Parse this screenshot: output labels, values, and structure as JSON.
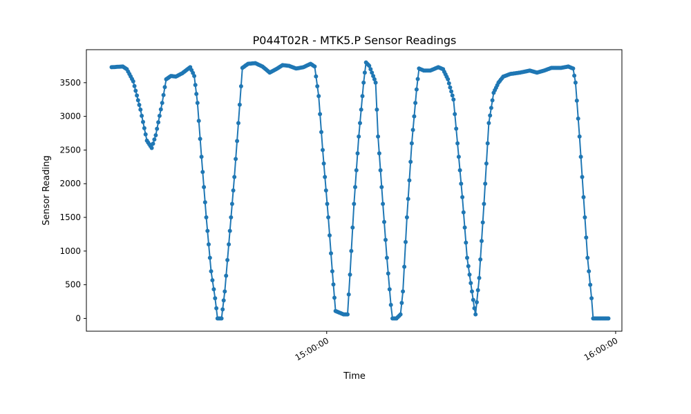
{
  "chart_data": {
    "type": "line",
    "title": "P044T02R - MTK5.P Sensor Readings",
    "xlabel": "Time",
    "ylabel": "Sensor Reading",
    "x_tick_labels": [
      "15:00:00",
      "16:00:00"
    ],
    "x_tick_minutes": [
      900,
      960
    ],
    "y_ticks": [
      0,
      500,
      1000,
      1500,
      2000,
      2500,
      3000,
      3500
    ],
    "ylim": [
      -190,
      3990
    ],
    "xlim_minutes": [
      850.1,
      961.3
    ],
    "grid": false,
    "marker": "circle",
    "series": [
      {
        "color": "#1f77b4",
        "points": [
          [
            "14:15:20",
            3730
          ],
          [
            "14:17:40",
            3740
          ],
          [
            "14:18:30",
            3700
          ],
          [
            "14:19:50",
            3520
          ],
          [
            "14:21:20",
            3100
          ],
          [
            "14:22:40",
            2640
          ],
          [
            "14:23:40",
            2530
          ],
          [
            "14:24:30",
            2720
          ],
          [
            "14:25:50",
            3200
          ],
          [
            "14:26:40",
            3550
          ],
          [
            "14:27:40",
            3600
          ],
          [
            "14:28:40",
            3590
          ],
          [
            "14:30:00",
            3640
          ],
          [
            "14:31:40",
            3730
          ],
          [
            "14:32:30",
            3600
          ],
          [
            "14:33:10",
            3200
          ],
          [
            "14:34:00",
            2400
          ],
          [
            "14:35:00",
            1500
          ],
          [
            "14:36:00",
            700
          ],
          [
            "14:36:50",
            300
          ],
          [
            "14:37:20",
            0
          ],
          [
            "14:38:10",
            0
          ],
          [
            "14:38:50",
            400
          ],
          [
            "14:39:40",
            1100
          ],
          [
            "14:40:50",
            2100
          ],
          [
            "14:41:40",
            2900
          ],
          [
            "14:42:30",
            3720
          ],
          [
            "14:43:40",
            3780
          ],
          [
            "14:45:10",
            3790
          ],
          [
            "14:46:40",
            3740
          ],
          [
            "14:48:10",
            3650
          ],
          [
            "14:49:30",
            3700
          ],
          [
            "14:50:50",
            3760
          ],
          [
            "14:52:10",
            3750
          ],
          [
            "14:53:40",
            3710
          ],
          [
            "14:55:10",
            3730
          ],
          [
            "14:56:40",
            3780
          ],
          [
            "14:57:30",
            3740
          ],
          [
            "14:58:20",
            3300
          ],
          [
            "14:59:10",
            2500
          ],
          [
            "15:00:20",
            1500
          ],
          [
            "15:01:10",
            700
          ],
          [
            "15:01:50",
            110
          ],
          [
            "15:02:30",
            90
          ],
          [
            "15:03:30",
            60
          ],
          [
            "15:04:20",
            60
          ],
          [
            "15:04:50",
            650
          ],
          [
            "15:05:40",
            1700
          ],
          [
            "15:06:40",
            2700
          ],
          [
            "15:07:40",
            3500
          ],
          [
            "15:08:10",
            3800
          ],
          [
            "15:08:50",
            3750
          ],
          [
            "15:09:40",
            3600
          ],
          [
            "15:10:10",
            3500
          ],
          [
            "15:10:40",
            2700
          ],
          [
            "15:11:40",
            1700
          ],
          [
            "15:12:30",
            900
          ],
          [
            "15:13:20",
            200
          ],
          [
            "15:13:40",
            0
          ],
          [
            "15:14:30",
            0
          ],
          [
            "15:15:20",
            60
          ],
          [
            "15:15:50",
            400
          ],
          [
            "15:16:40",
            1500
          ],
          [
            "15:17:40",
            2600
          ],
          [
            "15:18:40",
            3400
          ],
          [
            "15:19:10",
            3710
          ],
          [
            "15:20:10",
            3680
          ],
          [
            "15:21:30",
            3680
          ],
          [
            "15:23:10",
            3730
          ],
          [
            "15:24:10",
            3700
          ],
          [
            "15:25:10",
            3550
          ],
          [
            "15:26:20",
            3250
          ],
          [
            "15:27:10",
            2600
          ],
          [
            "15:28:10",
            1800
          ],
          [
            "15:29:10",
            900
          ],
          [
            "15:30:10",
            400
          ],
          [
            "15:30:40",
            150
          ],
          [
            "15:30:55",
            60
          ],
          [
            "15:31:40",
            600
          ],
          [
            "15:32:40",
            1700
          ],
          [
            "15:33:40",
            2900
          ],
          [
            "15:34:40",
            3350
          ],
          [
            "15:35:40",
            3500
          ],
          [
            "15:36:40",
            3590
          ],
          [
            "15:38:10",
            3630
          ],
          [
            "15:40:10",
            3650
          ],
          [
            "15:42:10",
            3680
          ],
          [
            "15:43:40",
            3650
          ],
          [
            "15:45:10",
            3680
          ],
          [
            "15:46:40",
            3720
          ],
          [
            "15:48:40",
            3720
          ],
          [
            "15:50:10",
            3740
          ],
          [
            "15:51:10",
            3710
          ],
          [
            "15:51:40",
            3500
          ],
          [
            "15:52:30",
            2700
          ],
          [
            "15:53:20",
            1800
          ],
          [
            "15:54:10",
            900
          ],
          [
            "15:55:00",
            300
          ],
          [
            "15:55:20",
            0
          ],
          [
            "15:56:40",
            0
          ],
          [
            "15:58:30",
            0
          ]
        ]
      }
    ]
  }
}
